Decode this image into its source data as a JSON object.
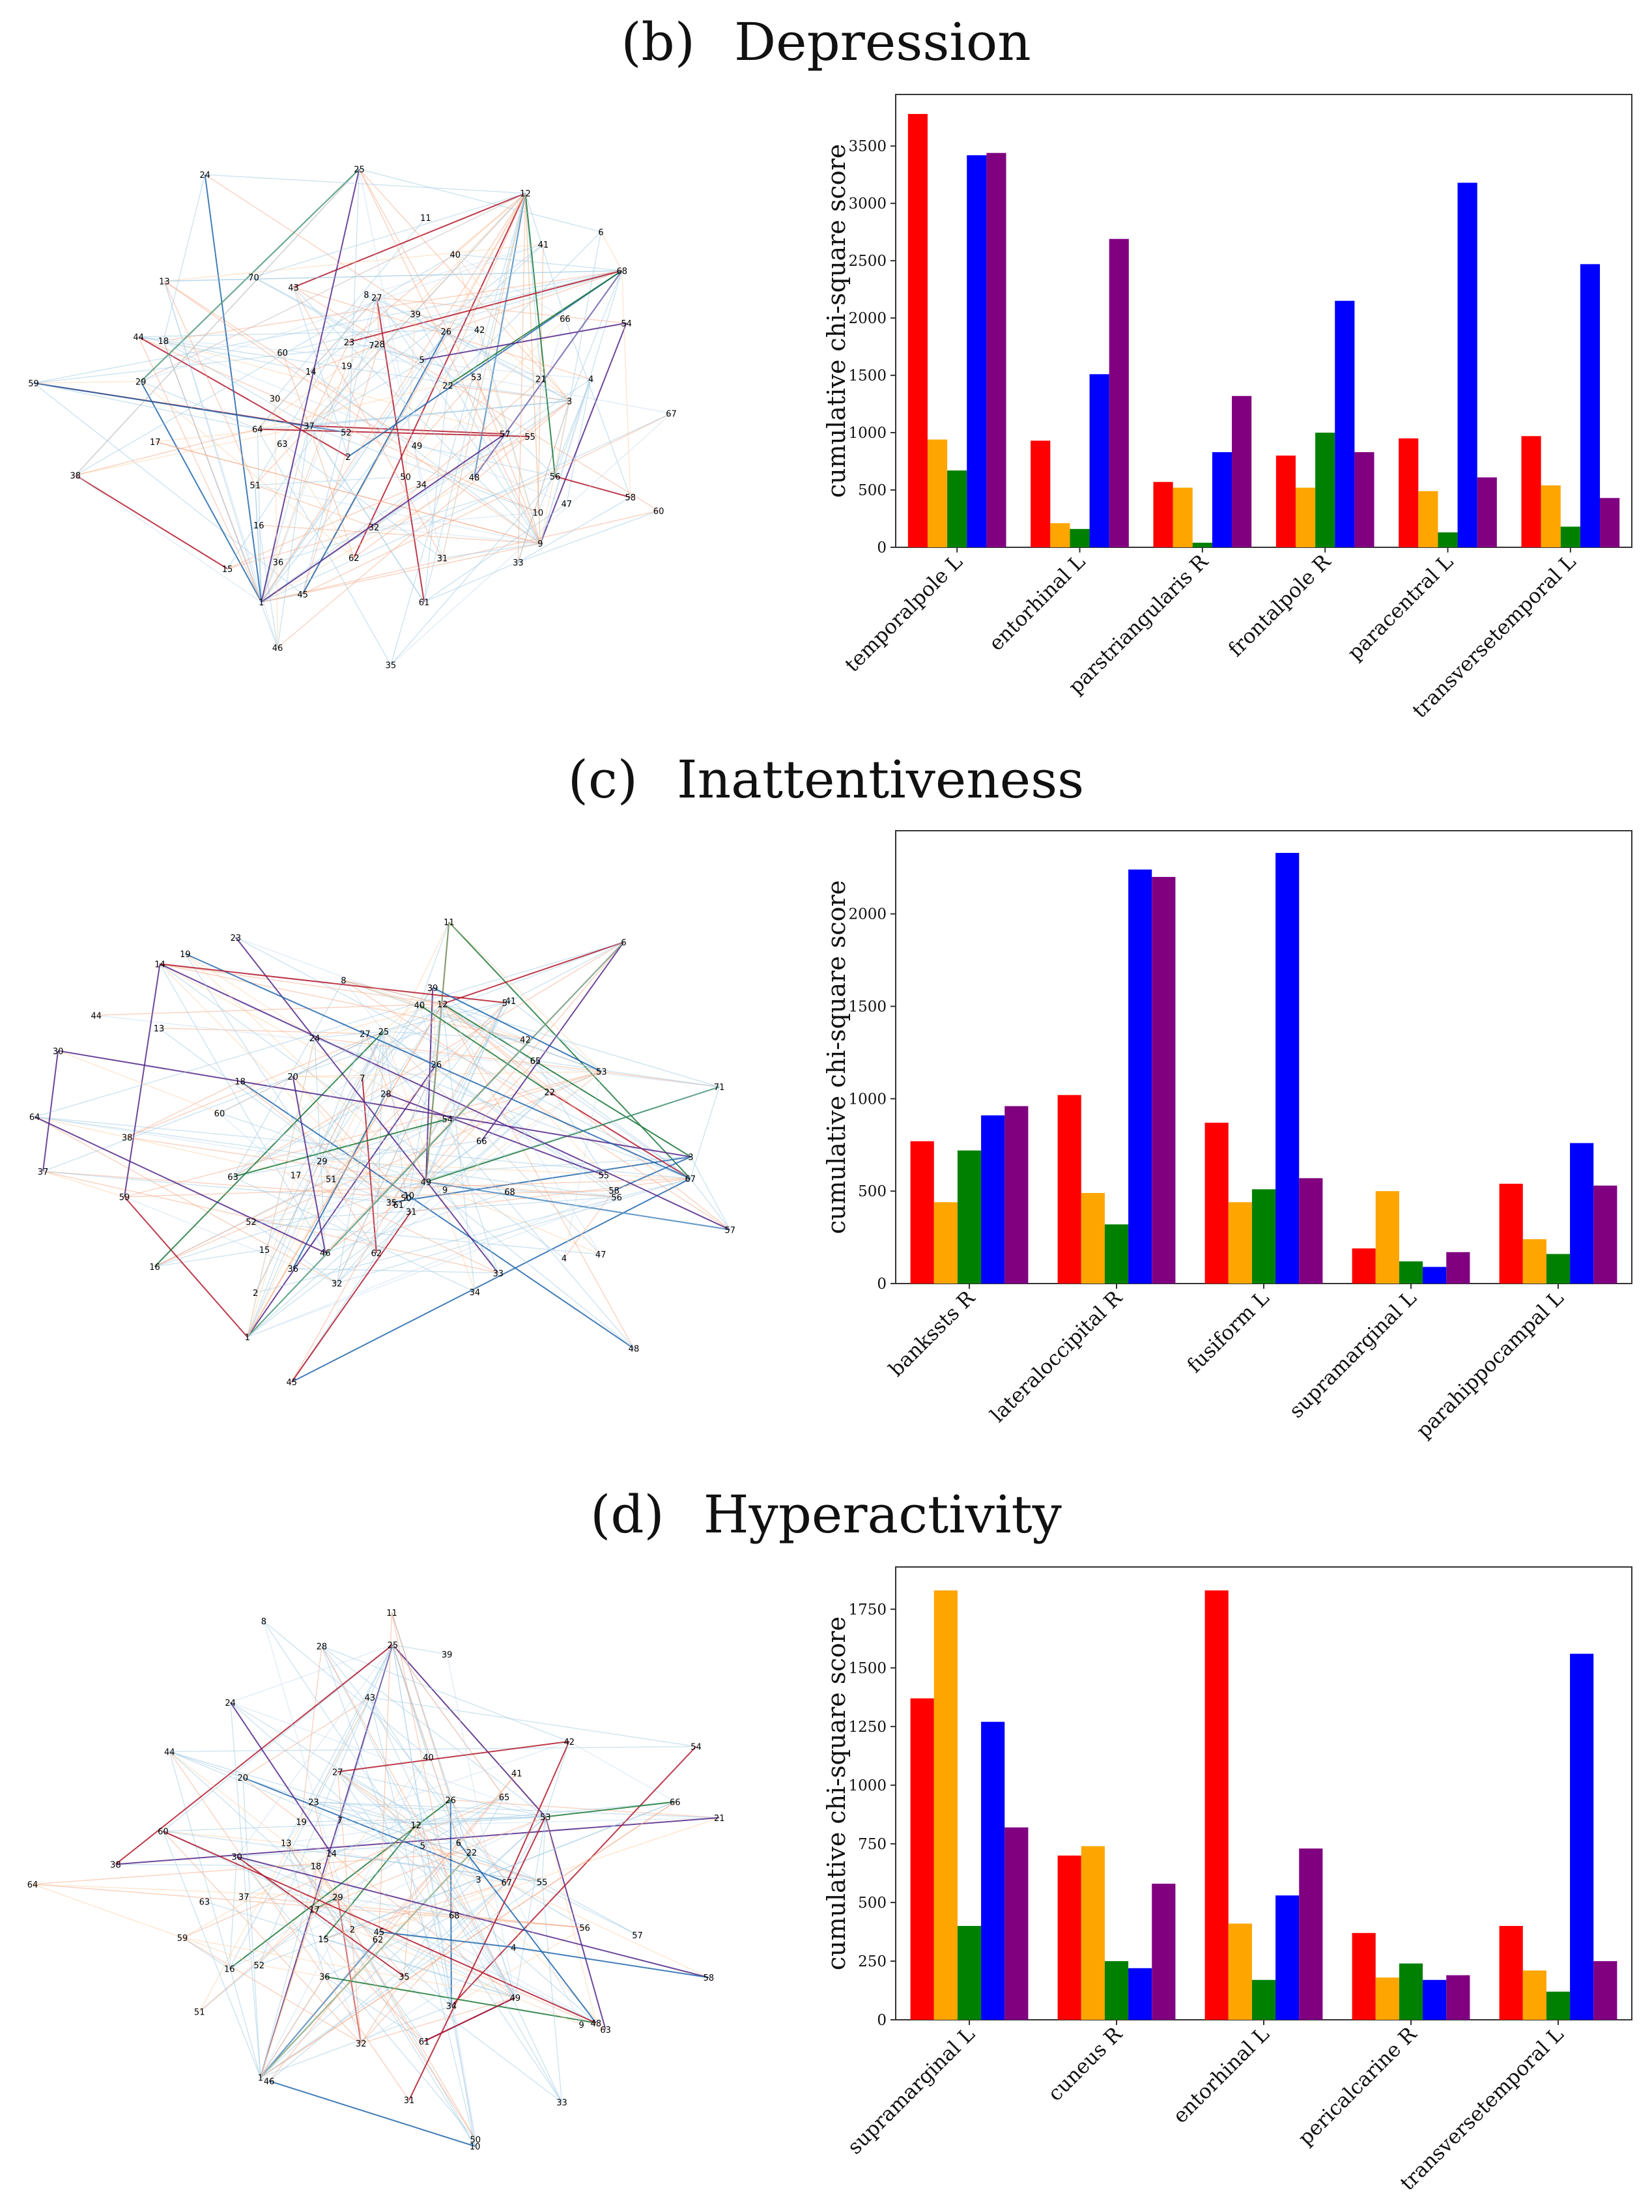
{
  "colors": {
    "series": [
      "#ff0000",
      "#ffa500",
      "#008000",
      "#0000ff",
      "#800080"
    ],
    "edge_palette": [
      "#9ecae1",
      "#f4a582",
      "#2166ac",
      "#b2182b",
      "#1b7837",
      "#542788",
      "#c6dbef",
      "#fdd0a2"
    ]
  },
  "panels": [
    {
      "label": "(b)",
      "title": "Depression",
      "chart_data": {
        "type": "bar",
        "categories": [
          "temporalpole L",
          "entorhinal L",
          "parstriangularis R",
          "frontalpole R",
          "paracentral L",
          "transversetemporal L"
        ],
        "series": [
          {
            "values": [
              3780,
              930,
              570,
              800,
              950,
              970
            ]
          },
          {
            "values": [
              940,
              210,
              520,
              520,
              490,
              540
            ]
          },
          {
            "values": [
              670,
              160,
              40,
              1000,
              130,
              180
            ]
          },
          {
            "values": [
              3420,
              1510,
              830,
              2150,
              3180,
              2470
            ]
          },
          {
            "values": [
              3440,
              2690,
              1320,
              830,
              610,
              430
            ]
          }
        ],
        "ylabel": "cumulative chi-square score",
        "yticks": [
          0,
          500,
          1000,
          1500,
          2000,
          2500,
          3000,
          3500
        ],
        "ylim": [
          0,
          3950
        ]
      },
      "network": {
        "nodes": [
          "25",
          "11",
          "39",
          "40",
          "12",
          "26",
          "5",
          "41",
          "42",
          "6",
          "66",
          "68",
          "53",
          "54",
          "22",
          "21",
          "4",
          "3",
          "67",
          "55",
          "57",
          "58",
          "56",
          "60",
          "47",
          "48",
          "10",
          "9",
          "49",
          "33",
          "34",
          "50",
          "31",
          "61",
          "35",
          "62",
          "32",
          "45",
          "46",
          "36",
          "1",
          "2",
          "15",
          "16",
          "51",
          "52",
          "63",
          "37",
          "38",
          "64",
          "17",
          "29",
          "59",
          "30",
          "18",
          "44",
          "60",
          "14",
          "13",
          "19",
          "70",
          "43",
          "24",
          "23",
          "7",
          "8",
          "27",
          "28"
        ]
      }
    },
    {
      "label": "(c)",
      "title": "Inattentiveness",
      "chart_data": {
        "type": "bar",
        "categories": [
          "bankssts R",
          "lateraloccipital R",
          "fusiform L",
          "supramarginal L",
          "parahippocampal L"
        ],
        "series": [
          {
            "values": [
              770,
              1020,
              870,
              190,
              540
            ]
          },
          {
            "values": [
              440,
              490,
              440,
              500,
              240
            ]
          },
          {
            "values": [
              720,
              320,
              510,
              120,
              160
            ]
          },
          {
            "values": [
              910,
              2240,
              2330,
              90,
              760
            ]
          },
          {
            "values": [
              960,
              2200,
              570,
              170,
              530
            ]
          }
        ],
        "ylabel": "cumulative chi-square score",
        "yticks": [
          0,
          500,
          1000,
          1500,
          2000
        ],
        "ylim": [
          0,
          2450
        ]
      },
      "network": {
        "nodes": [
          "25",
          "11",
          "39",
          "40",
          "12",
          "26",
          "5",
          "41",
          "42",
          "6",
          "65",
          "53",
          "54",
          "22",
          "71",
          "66",
          "3",
          "67",
          "55",
          "57",
          "58",
          "56",
          "68",
          "4",
          "47",
          "48",
          "9",
          "49",
          "33",
          "34",
          "50",
          "10",
          "31",
          "61",
          "35",
          "62",
          "32",
          "45",
          "46",
          "36",
          "1",
          "2",
          "15",
          "51",
          "52",
          "16",
          "17",
          "29",
          "59",
          "63",
          "37",
          "38",
          "64",
          "60",
          "30",
          "18",
          "13",
          "44",
          "14",
          "20",
          "19",
          "23",
          "24",
          "7",
          "8",
          "27",
          "28"
        ]
      }
    },
    {
      "label": "(d)",
      "title": "Hyperactivity",
      "chart_data": {
        "type": "bar",
        "categories": [
          "supramarginal L",
          "cuneus R",
          "entorhinal L",
          "pericalcarine R",
          "transversetemporal L"
        ],
        "series": [
          {
            "values": [
              1370,
              700,
              1830,
              370,
              400
            ]
          },
          {
            "values": [
              1830,
              740,
              410,
              180,
              210
            ]
          },
          {
            "values": [
              400,
              250,
              170,
              240,
              120
            ]
          },
          {
            "values": [
              1270,
              220,
              530,
              170,
              1560
            ]
          },
          {
            "values": [
              820,
              580,
              730,
              190,
              250
            ]
          }
        ],
        "ylabel": "cumulative chi-square score",
        "yticks": [
          0,
          250,
          500,
          750,
          1000,
          1250,
          1500,
          1750
        ],
        "ylim": [
          0,
          1930
        ]
      },
      "network": {
        "nodes": [
          "25",
          "11",
          "39",
          "40",
          "12",
          "26",
          "5",
          "41",
          "42",
          "6",
          "65",
          "53",
          "54",
          "22",
          "66",
          "21",
          "3",
          "67",
          "55",
          "57",
          "58",
          "56",
          "68",
          "4",
          "63",
          "48",
          "9",
          "49",
          "33",
          "34",
          "50",
          "10",
          "31",
          "61",
          "35",
          "62",
          "32",
          "45",
          "46",
          "36",
          "1",
          "2",
          "15",
          "51",
          "52",
          "16",
          "17",
          "29",
          "59",
          "63",
          "37",
          "38",
          "64",
          "60",
          "30",
          "18",
          "13",
          "44",
          "14",
          "20",
          "19",
          "23",
          "24",
          "7",
          "8",
          "27",
          "28",
          "43"
        ]
      }
    }
  ]
}
